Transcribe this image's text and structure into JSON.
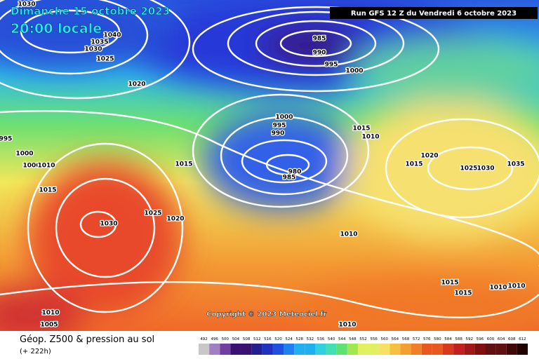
{
  "header": {
    "title": "Dimanche 15 octobre 2023",
    "time": "20:00 locale",
    "run": "Run GFS 12 Z du Vendredi 6 octobre 2023"
  },
  "map": {
    "copyright": "Copyright © 2023 Meteociel.fr",
    "isobar_labels": [
      1030,
      1040,
      1035,
      1030,
      1025,
      1020,
      985,
      990,
      995,
      1000,
      1000,
      995,
      990,
      980,
      985,
      995,
      1000,
      1000,
      1010,
      1015,
      1015,
      1030,
      1025,
      1020,
      1015,
      1010,
      1020,
      1015,
      1025,
      1030,
      1035,
      1010,
      1015,
      1015,
      1010,
      1010,
      1010,
      1005,
      1010
    ]
  },
  "footer": {
    "title": "Géop. Z500 & pression au sol",
    "lead": "(+ 222h)"
  },
  "legend": {
    "labels": [
      492,
      496,
      500,
      504,
      508,
      512,
      516,
      520,
      524,
      528,
      532,
      536,
      540,
      544,
      548,
      552,
      556,
      560,
      564,
      568,
      572,
      576,
      580,
      584,
      588,
      592,
      596,
      600,
      604,
      608,
      612
    ]
  }
}
